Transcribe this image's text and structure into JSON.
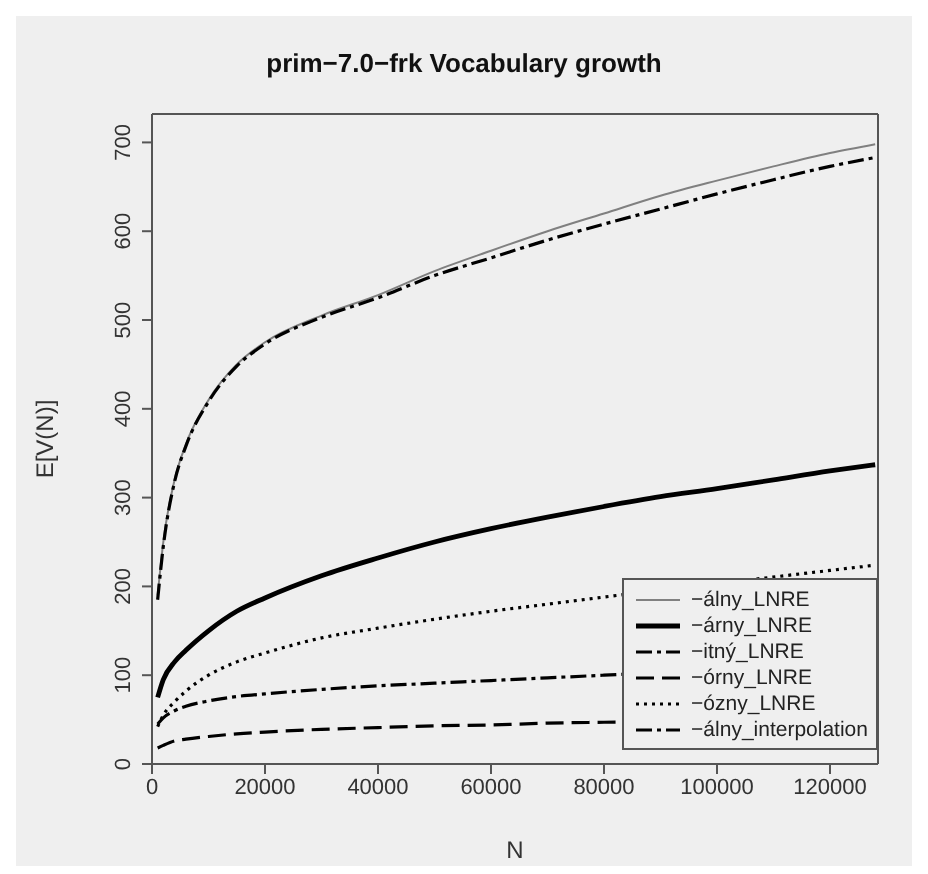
{
  "chart_data": {
    "type": "line",
    "title": "prim−7.0−frk Vocabulary growth",
    "xlabel": "N",
    "ylabel": "E[V(N)]",
    "x": [
      1000,
      2000,
      4000,
      6000,
      10000,
      15000,
      20000,
      30000,
      40000,
      50000,
      60000,
      70000,
      80000,
      90000,
      100000,
      110000,
      120000,
      128000
    ],
    "series": [
      {
        "name": "−álny_LNRE",
        "color": "#808080",
        "line_style": "solid",
        "values": [
          190,
          250,
          320,
          360,
          410,
          450,
          475,
          505,
          528,
          555,
          578,
          600,
          620,
          640,
          657,
          673,
          688,
          698
        ]
      },
      {
        "name": "−árny_LNRE",
        "color": "#000000",
        "line_style": "solid",
        "values": [
          75,
          95,
          115,
          128,
          150,
          172,
          187,
          212,
          232,
          250,
          265,
          278,
          290,
          301,
          310,
          320,
          330,
          337
        ]
      },
      {
        "name": "−itný_LNRE",
        "color": "#000000",
        "line_style": "dashdot",
        "values": [
          45,
          52,
          60,
          65,
          71,
          76,
          79,
          84,
          88,
          91,
          94,
          97,
          100,
          null,
          null,
          null,
          null,
          112
        ]
      },
      {
        "name": "−órny_LNRE",
        "color": "#000000",
        "line_style": "dashed",
        "values": [
          18,
          21,
          26,
          28,
          31,
          34,
          36,
          39,
          41,
          43,
          44,
          46,
          47,
          null,
          null,
          null,
          null,
          52
        ]
      },
      {
        "name": "−ózny_LNRE",
        "color": "#000000",
        "line_style": "dotted",
        "values": [
          42,
          55,
          70,
          82,
          100,
          115,
          125,
          142,
          153,
          163,
          172,
          180,
          188,
          null,
          null,
          null,
          218,
          224
        ]
      },
      {
        "name": "−álny_interpolation",
        "color": "#000000",
        "line_style": "dashdot",
        "values": [
          185,
          245,
          318,
          358,
          408,
          448,
          473,
          503,
          525,
          550,
          570,
          590,
          608,
          625,
          642,
          658,
          673,
          683
        ]
      }
    ],
    "xlim": [
      0,
      128500
    ],
    "xticks": [
      0,
      20000,
      40000,
      60000,
      80000,
      100000,
      120000
    ],
    "ylim": [
      0,
      732
    ],
    "yticks": [
      0,
      100,
      200,
      300,
      400,
      500,
      600,
      700
    ],
    "grid": false,
    "legend": "bottom right",
    "marker": "none"
  }
}
